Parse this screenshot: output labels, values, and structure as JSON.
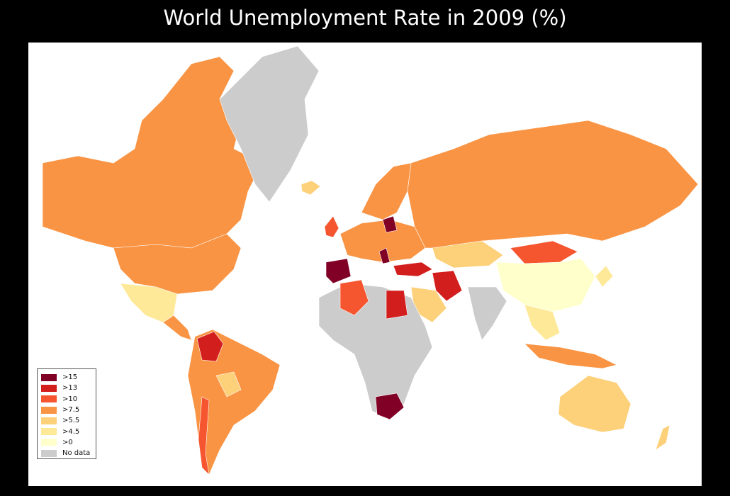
{
  "title": "World Unemployment Rate in 2009 (%)",
  "colors": {
    "gt15": "#800026",
    "gt13": "#d31e1e",
    "gt10": "#f5552f",
    "gt7_5": "#f99444",
    "gt5_5": "#fdd07a",
    "gt4_5": "#fee999",
    "gt0": "#ffffcc",
    "nodata": "#cccccc"
  },
  "legend": {
    "items": [
      {
        "label": ">15",
        "color": "#800026"
      },
      {
        "label": ">13",
        "color": "#d31e1e"
      },
      {
        "label": ">10",
        "color": "#f5552f"
      },
      {
        "label": ">7.5",
        "color": "#f99444"
      },
      {
        "label": ">5.5",
        "color": "#fdd07a"
      },
      {
        "label": ">4.5",
        "color": "#fee999"
      },
      {
        "label": ">0",
        "color": "#ffffcc"
      },
      {
        "label": "No data",
        "color": "#cccccc"
      }
    ]
  }
}
